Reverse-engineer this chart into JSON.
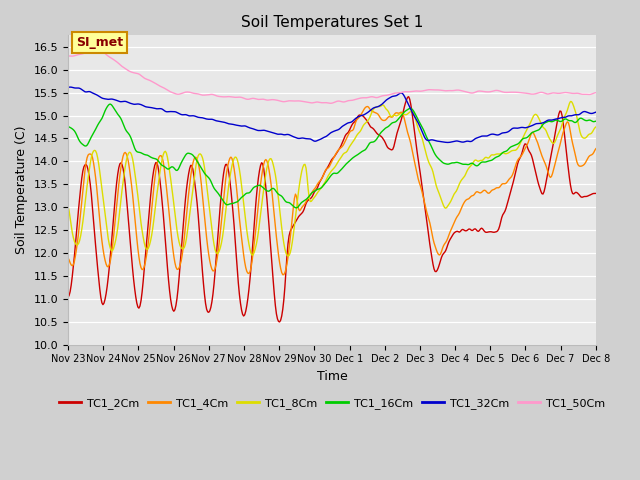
{
  "title": "Soil Temperatures Set 1",
  "xlabel": "Time",
  "ylabel": "Soil Temperature (C)",
  "ylim": [
    10.0,
    16.75
  ],
  "yticks": [
    10.0,
    10.5,
    11.0,
    11.5,
    12.0,
    12.5,
    13.0,
    13.5,
    14.0,
    14.5,
    15.0,
    15.5,
    16.0,
    16.5
  ],
  "colors": {
    "TC1_2Cm": "#cc0000",
    "TC1_4Cm": "#ff8800",
    "TC1_8Cm": "#dddd00",
    "TC1_16Cm": "#00cc00",
    "TC1_32Cm": "#0000cc",
    "TC1_50Cm": "#ff99cc"
  },
  "bg_color": "#e8e8e8",
  "grid_color": "#ffffff",
  "annotation_text": "SI_met",
  "annotation_bg": "#ffff99",
  "annotation_border": "#cc8800",
  "annotation_text_color": "#880000",
  "figsize": [
    6.4,
    4.8
  ],
  "dpi": 100,
  "x_tick_labels": [
    "Nov 23",
    "Nov 24",
    "Nov 25",
    "Nov 26",
    "Nov 27",
    "Nov 28",
    "Nov 29",
    "Nov 30",
    "Dec 1",
    "Dec 2",
    "Dec 3",
    "Dec 4",
    "Dec 5",
    "Dec 6",
    "Dec 7",
    "Dec 8"
  ]
}
